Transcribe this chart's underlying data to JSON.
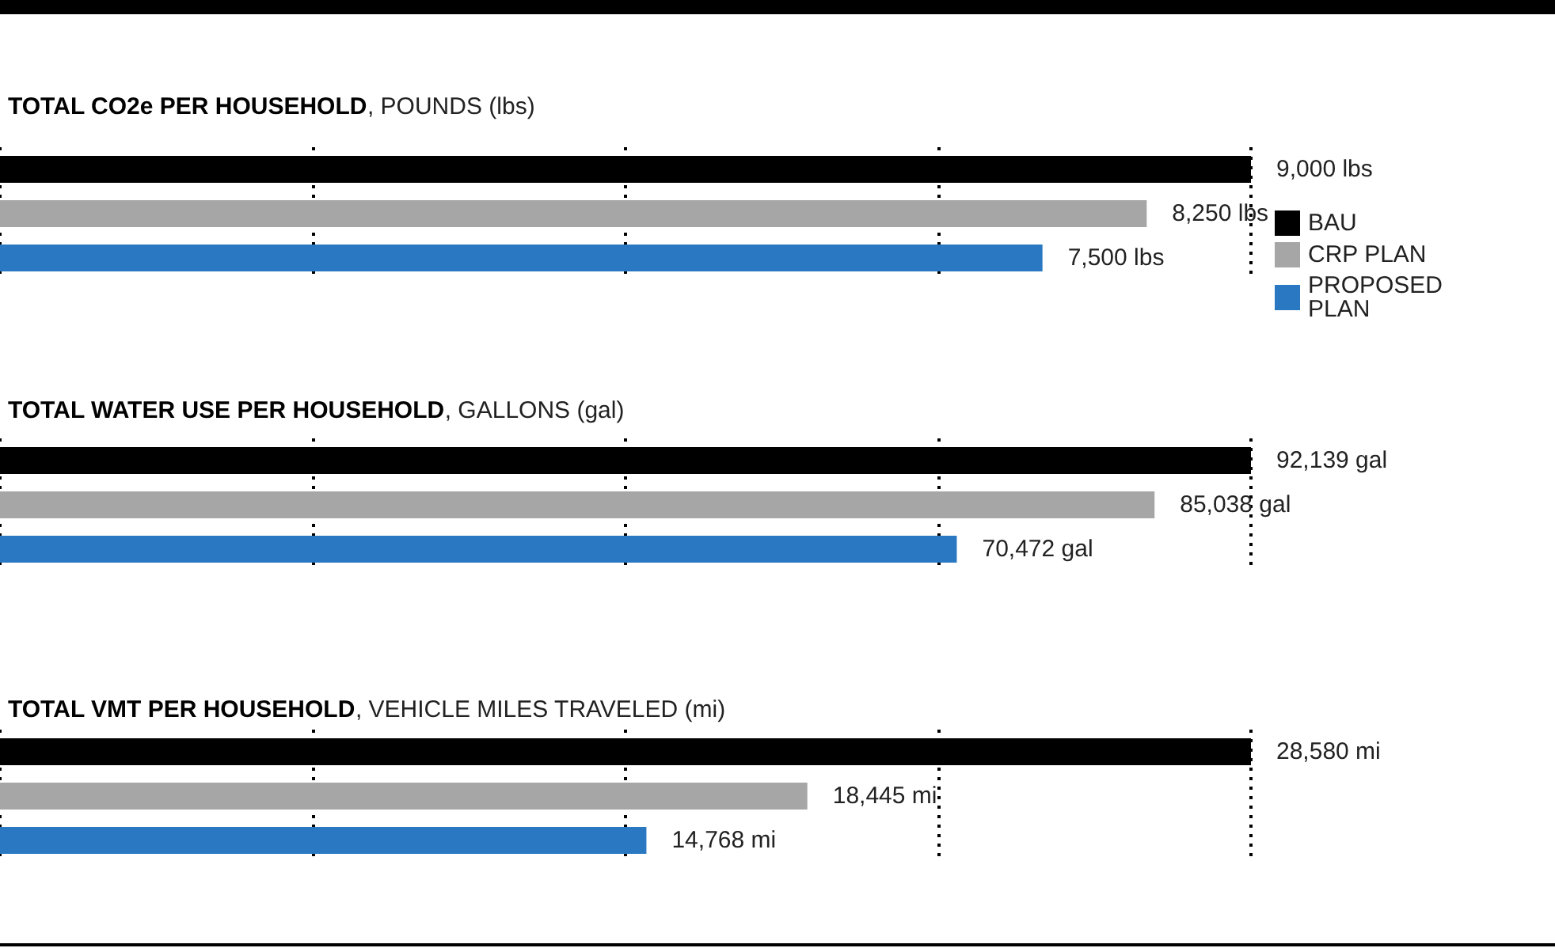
{
  "chart_data": [
    {
      "type": "bar",
      "orientation": "horizontal",
      "stacked": true,
      "title": "TOTAL CO2e PER HOUSEHOLD, POUNDS (lbs)",
      "categories": [
        null,
        null,
        null
      ],
      "grid": "x",
      "tick_labels": false,
      "legend": "right",
      "series": [
        {
          "name": "BAU",
          "color": "#000000",
          "values": [
            9000,
            null,
            null
          ],
          "value_labels": [
            "9,000 lbs",
            null,
            null
          ]
        },
        {
          "name": "CRP PLAN",
          "color": "#a6a6a6",
          "values": [
            null,
            8250,
            null
          ],
          "value_labels": [
            null,
            "8,250 lbs",
            null
          ]
        },
        {
          "name": "PROPOSED PLAN",
          "color": "#2a78c2",
          "values": [
            null,
            null,
            7500
          ],
          "value_labels": [
            null,
            null,
            "7,500 lbs"
          ]
        }
      ]
    },
    {
      "type": "bar",
      "orientation": "horizontal",
      "stacked": true,
      "title": "TOTAL WATER USE PER HOUSEHOLD, GALLONS (gal)",
      "categories": [
        null,
        null,
        null
      ],
      "grid": "x",
      "tick_labels": false,
      "series": [
        {
          "color": "#000000",
          "values": [
            92139,
            null,
            null
          ],
          "value_labels": [
            "92,139 gal",
            null,
            null
          ]
        },
        {
          "color": "#a6a6a6",
          "values": [
            null,
            85038,
            null
          ],
          "value_labels": [
            null,
            "85,038 gal",
            null
          ]
        },
        {
          "color": "#2a78c2",
          "values": [
            null,
            null,
            70472
          ],
          "value_labels": [
            null,
            null,
            "70,472 gal"
          ]
        }
      ]
    },
    {
      "type": "bar",
      "orientation": "horizontal",
      "stacked": true,
      "title": "TOTAL VMT PER HOUSEHOLD, VEHICLE MILES TRAVELED (mi)",
      "categories": [
        null,
        null,
        null
      ],
      "grid": "x",
      "tick_labels": false,
      "series": [
        {
          "color": "#000000",
          "values": [
            28580,
            null,
            null
          ],
          "value_labels": [
            "28,580 mi",
            null,
            null
          ]
        },
        {
          "color": "#a6a6a6",
          "values": [
            null,
            18445,
            null
          ],
          "value_labels": [
            null,
            "18,445 mi",
            null
          ]
        },
        {
          "color": "#2a78c2",
          "values": [
            null,
            null,
            14768
          ],
          "value_labels": [
            null,
            null,
            "14,768 mi"
          ]
        }
      ]
    }
  ]
}
